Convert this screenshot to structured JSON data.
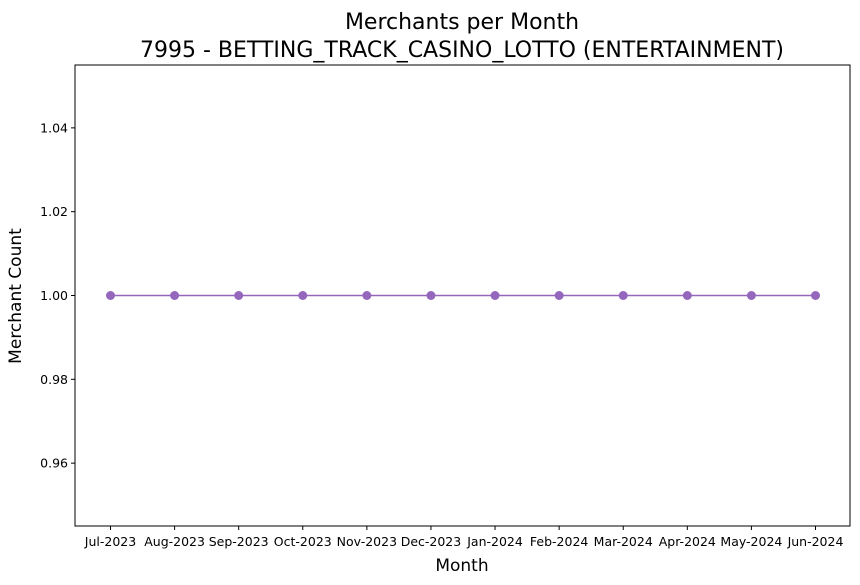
{
  "chart_data": {
    "type": "line",
    "title": "Merchants per Month",
    "subtitle": "7995 - BETTING_TRACK_CASINO_LOTTO (ENTERTAINMENT)",
    "xlabel": "Month",
    "ylabel": "Merchant Count",
    "categories": [
      "Jul-2023",
      "Aug-2023",
      "Sep-2023",
      "Oct-2023",
      "Nov-2023",
      "Dec-2023",
      "Jan-2024",
      "Feb-2024",
      "Mar-2024",
      "Apr-2024",
      "May-2024",
      "Jun-2024"
    ],
    "series": [
      {
        "values": [
          1,
          1,
          1,
          1,
          1,
          1,
          1,
          1,
          1,
          1,
          1,
          1
        ],
        "color": "#9467bd",
        "marker": "circle"
      }
    ],
    "ylim": [
      0.945,
      1.055
    ],
    "yticks": [
      "0.96",
      "0.98",
      "1.00",
      "1.02",
      "1.04"
    ],
    "grid": false,
    "legend": "none"
  }
}
